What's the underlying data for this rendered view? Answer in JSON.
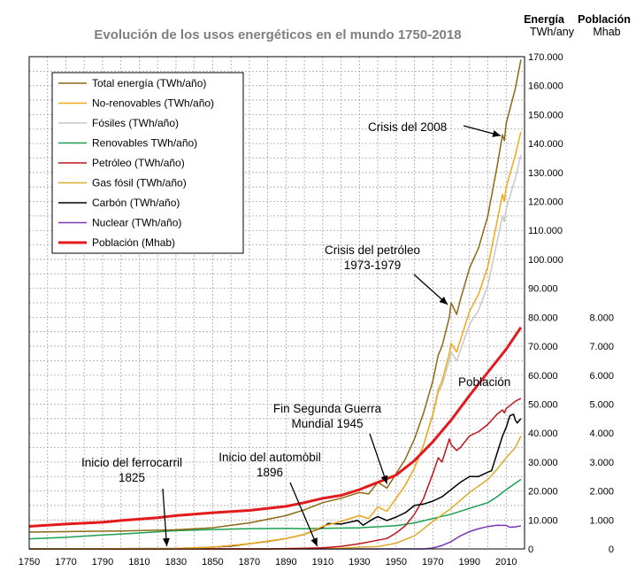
{
  "chart_data": {
    "type": "line",
    "title": "Evolución de los usos energéticos en el mundo 1750-2018",
    "axis_header_energy": [
      "Energía",
      "TWh/any"
    ],
    "axis_header_population": [
      "Población",
      "Mhab"
    ],
    "xlim": [
      1750,
      2020
    ],
    "x_ticks": [
      1750,
      1770,
      1790,
      1810,
      1830,
      1850,
      1870,
      1890,
      1910,
      1930,
      1950,
      1970,
      1990,
      2010
    ],
    "ylim_energy": [
      0,
      170000
    ],
    "y_ticks_energy": [
      0,
      10000,
      20000,
      30000,
      40000,
      50000,
      60000,
      70000,
      80000,
      90000,
      100000,
      110000,
      120000,
      130000,
      140000,
      150000,
      160000,
      170000
    ],
    "y_tick_labels_energy": [
      "0",
      "10.000",
      "20.000",
      "30.000",
      "40.000",
      "50.000",
      "60.000",
      "70.000",
      "80.000",
      "90.000",
      "100.000",
      "110.000",
      "120.000",
      "130.000",
      "140.000",
      "150.000",
      "160.000",
      "170.000"
    ],
    "ylim_population": [
      0,
      17000
    ],
    "y_ticks_population": [
      0,
      1000,
      2000,
      3000,
      4000,
      5000,
      6000,
      7000,
      8000
    ],
    "y_tick_labels_population": [
      "0",
      "1.000",
      "2.000",
      "3.000",
      "4.000",
      "5.000",
      "6.000",
      "7.000",
      "8.000"
    ],
    "grid": true,
    "legend_position": "top-left",
    "series": [
      {
        "name": "Total energía (TWh/año)",
        "color": "#8b6914",
        "axis": "energy",
        "width": 1.5,
        "points": [
          [
            1750,
            5800
          ],
          [
            1800,
            6200
          ],
          [
            1830,
            6600
          ],
          [
            1850,
            7300
          ],
          [
            1870,
            9000
          ],
          [
            1890,
            11500
          ],
          [
            1900,
            13500
          ],
          [
            1910,
            16000
          ],
          [
            1920,
            17500
          ],
          [
            1930,
            19500
          ],
          [
            1935,
            19000
          ],
          [
            1940,
            23000
          ],
          [
            1945,
            21000
          ],
          [
            1950,
            26000
          ],
          [
            1955,
            31000
          ],
          [
            1960,
            38000
          ],
          [
            1965,
            47000
          ],
          [
            1970,
            58000
          ],
          [
            1973,
            67000
          ],
          [
            1975,
            70000
          ],
          [
            1979,
            80000
          ],
          [
            1980,
            85000
          ],
          [
            1983,
            81000
          ],
          [
            1985,
            86000
          ],
          [
            1990,
            97000
          ],
          [
            1995,
            104000
          ],
          [
            2000,
            115000
          ],
          [
            2005,
            132000
          ],
          [
            2008,
            143000
          ],
          [
            2009,
            141000
          ],
          [
            2010,
            147000
          ],
          [
            2015,
            159000
          ],
          [
            2018,
            169000
          ]
        ]
      },
      {
        "name": "No-renovables (TWh/año)",
        "color": "#f0a818",
        "axis": "energy",
        "width": 1.5,
        "points": [
          [
            1750,
            0
          ],
          [
            1830,
            150
          ],
          [
            1850,
            600
          ],
          [
            1870,
            1800
          ],
          [
            1890,
            3600
          ],
          [
            1900,
            5000
          ],
          [
            1910,
            7800
          ],
          [
            1920,
            9500
          ],
          [
            1930,
            11500
          ],
          [
            1935,
            10500
          ],
          [
            1940,
            14500
          ],
          [
            1945,
            13000
          ],
          [
            1950,
            17500
          ],
          [
            1955,
            22000
          ],
          [
            1960,
            28000
          ],
          [
            1965,
            36000
          ],
          [
            1970,
            46500
          ],
          [
            1973,
            55000
          ],
          [
            1975,
            58000
          ],
          [
            1979,
            67500
          ],
          [
            1980,
            71000
          ],
          [
            1983,
            68000
          ],
          [
            1985,
            72000
          ],
          [
            1990,
            82000
          ],
          [
            1995,
            88000
          ],
          [
            2000,
            97500
          ],
          [
            2005,
            113000
          ],
          [
            2008,
            122500
          ],
          [
            2009,
            120000
          ],
          [
            2010,
            125000
          ],
          [
            2015,
            136000
          ],
          [
            2018,
            144000
          ]
        ]
      },
      {
        "name": "Fósiles (TWh/año)",
        "color": "#c8c8c8",
        "axis": "energy",
        "width": 1.5,
        "points": [
          [
            1750,
            0
          ],
          [
            1830,
            150
          ],
          [
            1850,
            600
          ],
          [
            1870,
            1800
          ],
          [
            1890,
            3600
          ],
          [
            1900,
            5000
          ],
          [
            1910,
            7800
          ],
          [
            1920,
            9500
          ],
          [
            1930,
            11500
          ],
          [
            1935,
            10500
          ],
          [
            1940,
            14500
          ],
          [
            1945,
            13000
          ],
          [
            1950,
            17500
          ],
          [
            1955,
            22000
          ],
          [
            1960,
            28000
          ],
          [
            1965,
            36000
          ],
          [
            1970,
            46000
          ],
          [
            1973,
            54000
          ],
          [
            1975,
            56500
          ],
          [
            1979,
            65000
          ],
          [
            1980,
            68000
          ],
          [
            1983,
            65000
          ],
          [
            1985,
            68500
          ],
          [
            1990,
            77500
          ],
          [
            1995,
            82500
          ],
          [
            2000,
            91000
          ],
          [
            2005,
            106000
          ],
          [
            2008,
            115000
          ],
          [
            2009,
            113000
          ],
          [
            2010,
            117500
          ],
          [
            2015,
            128000
          ],
          [
            2018,
            136000
          ]
        ]
      },
      {
        "name": "Renovables TWh/año)",
        "color": "#1aa052",
        "axis": "energy",
        "width": 1.5,
        "points": [
          [
            1750,
            3500
          ],
          [
            1770,
            4000
          ],
          [
            1790,
            4800
          ],
          [
            1810,
            5500
          ],
          [
            1830,
            6300
          ],
          [
            1850,
            6700
          ],
          [
            1870,
            7000
          ],
          [
            1890,
            7100
          ],
          [
            1900,
            7000
          ],
          [
            1910,
            7100
          ],
          [
            1930,
            7300
          ],
          [
            1950,
            8000
          ],
          [
            1960,
            9000
          ],
          [
            1970,
            10500
          ],
          [
            1980,
            12000
          ],
          [
            1990,
            14000
          ],
          [
            2000,
            16000
          ],
          [
            2005,
            18000
          ],
          [
            2010,
            20500
          ],
          [
            2018,
            24000
          ]
        ]
      },
      {
        "name": "Petróleo (TWh/año)",
        "color": "#c0151c",
        "axis": "energy",
        "width": 1.5,
        "points": [
          [
            1750,
            0
          ],
          [
            1880,
            0
          ],
          [
            1900,
            200
          ],
          [
            1910,
            400
          ],
          [
            1920,
            900
          ],
          [
            1930,
            1800
          ],
          [
            1940,
            3000
          ],
          [
            1945,
            3600
          ],
          [
            1950,
            5500
          ],
          [
            1955,
            8000
          ],
          [
            1960,
            12000
          ],
          [
            1965,
            17500
          ],
          [
            1970,
            26000
          ],
          [
            1973,
            31500
          ],
          [
            1975,
            30000
          ],
          [
            1979,
            38000
          ],
          [
            1980,
            36000
          ],
          [
            1983,
            34000
          ],
          [
            1985,
            35000
          ],
          [
            1990,
            39000
          ],
          [
            1995,
            40500
          ],
          [
            2000,
            43000
          ],
          [
            2005,
            46500
          ],
          [
            2008,
            48000
          ],
          [
            2009,
            47000
          ],
          [
            2010,
            48500
          ],
          [
            2015,
            51000
          ],
          [
            2018,
            52000
          ]
        ]
      },
      {
        "name": "Gas fósil (TWh/año)",
        "color": "#d9ac2a",
        "axis": "energy",
        "width": 1.5,
        "points": [
          [
            1750,
            0
          ],
          [
            1900,
            0
          ],
          [
            1920,
            200
          ],
          [
            1930,
            600
          ],
          [
            1940,
            800
          ],
          [
            1950,
            2000
          ],
          [
            1960,
            4500
          ],
          [
            1970,
            9500
          ],
          [
            1980,
            14000
          ],
          [
            1990,
            19500
          ],
          [
            2000,
            24000
          ],
          [
            2005,
            27500
          ],
          [
            2010,
            31500
          ],
          [
            2015,
            35000
          ],
          [
            2018,
            39000
          ]
        ]
      },
      {
        "name": "Carbón (TWh/año)",
        "color": "#000000",
        "axis": "energy",
        "width": 1.5,
        "points": [
          [
            1750,
            0
          ],
          [
            1830,
            150
          ],
          [
            1850,
            600
          ],
          [
            1860,
            1000
          ],
          [
            1870,
            1800
          ],
          [
            1880,
            2600
          ],
          [
            1890,
            3600
          ],
          [
            1900,
            5000
          ],
          [
            1910,
            7500
          ],
          [
            1913,
            8800
          ],
          [
            1920,
            8600
          ],
          [
            1929,
            9800
          ],
          [
            1932,
            8200
          ],
          [
            1937,
            10200
          ],
          [
            1940,
            11200
          ],
          [
            1945,
            9800
          ],
          [
            1950,
            11000
          ],
          [
            1955,
            12500
          ],
          [
            1960,
            15000
          ],
          [
            1965,
            15500
          ],
          [
            1970,
            16500
          ],
          [
            1975,
            18000
          ],
          [
            1980,
            20500
          ],
          [
            1985,
            23000
          ],
          [
            1990,
            25000
          ],
          [
            1995,
            25000
          ],
          [
            2000,
            26500
          ],
          [
            2002,
            27000
          ],
          [
            2005,
            33000
          ],
          [
            2008,
            39000
          ],
          [
            2010,
            42000
          ],
          [
            2012,
            46000
          ],
          [
            2014,
            46500
          ],
          [
            2015,
            44500
          ],
          [
            2016,
            43500
          ],
          [
            2018,
            45000
          ]
        ]
      },
      {
        "name": "Nuclear (TWh/año)",
        "color": "#7b35b2",
        "axis": "energy",
        "width": 1.5,
        "points": [
          [
            1750,
            0
          ],
          [
            1965,
            0
          ],
          [
            1970,
            300
          ],
          [
            1975,
            1200
          ],
          [
            1980,
            2500
          ],
          [
            1985,
            4500
          ],
          [
            1990,
            6000
          ],
          [
            1995,
            7000
          ],
          [
            2000,
            7700
          ],
          [
            2005,
            8200
          ],
          [
            2010,
            8100
          ],
          [
            2012,
            7500
          ],
          [
            2015,
            7600
          ],
          [
            2018,
            8000
          ]
        ]
      },
      {
        "name": "Población (Mhab)",
        "color": "#e31a1c",
        "axis": "population",
        "width": 3,
        "points": [
          [
            1750,
            780
          ],
          [
            1770,
            860
          ],
          [
            1790,
            920
          ],
          [
            1800,
            980
          ],
          [
            1820,
            1080
          ],
          [
            1830,
            1150
          ],
          [
            1850,
            1250
          ],
          [
            1870,
            1330
          ],
          [
            1890,
            1470
          ],
          [
            1900,
            1600
          ],
          [
            1910,
            1750
          ],
          [
            1920,
            1850
          ],
          [
            1930,
            2050
          ],
          [
            1940,
            2300
          ],
          [
            1950,
            2550
          ],
          [
            1960,
            3050
          ],
          [
            1970,
            3700
          ],
          [
            1980,
            4450
          ],
          [
            1990,
            5300
          ],
          [
            2000,
            6100
          ],
          [
            2010,
            6900
          ],
          [
            2018,
            7650
          ]
        ]
      }
    ],
    "annotations": [
      {
        "lines": [
          "Crisis del 2008"
        ],
        "target": [
          2008,
          143000
        ]
      },
      {
        "lines": [
          "Crisis del petróleo",
          "1973-1979"
        ],
        "target": [
          1979,
          85000
        ]
      },
      {
        "lines": [
          "Población"
        ],
        "target": null
      },
      {
        "lines": [
          "Fin Segunda Guerra",
          "Mundial 1945"
        ],
        "target": [
          1945,
          25000
        ]
      },
      {
        "lines": [
          "Inicio del automòbil",
          "1896"
        ],
        "target": [
          1907,
          0
        ]
      },
      {
        "lines": [
          "Inicio del ferrocarril",
          "1825"
        ],
        "target": [
          1825,
          0
        ]
      }
    ]
  }
}
